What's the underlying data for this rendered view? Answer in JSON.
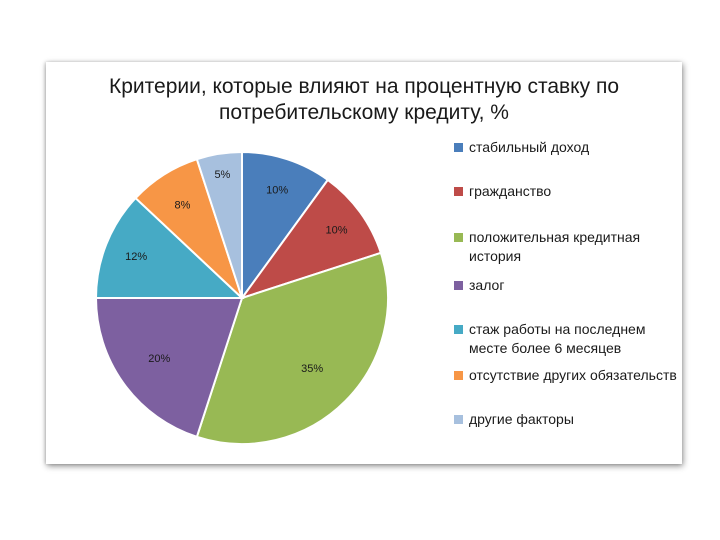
{
  "chart_data": {
    "type": "pie",
    "title_line1": "Критерии, которые влияют на процентную ставку по",
    "title_line2": "потребительскому кредиту, %",
    "slices": [
      {
        "label": "стабильный доход",
        "value": 10,
        "value_label": "10%",
        "color": "#4A7EBB"
      },
      {
        "label": "гражданство",
        "value": 10,
        "value_label": "10%",
        "color": "#BE4B48"
      },
      {
        "label": "положительная кредитная история",
        "value": 35,
        "value_label": "35%",
        "color": "#98B954"
      },
      {
        "label": "залог",
        "value": 20,
        "value_label": "20%",
        "color": "#7D60A0"
      },
      {
        "label": "стаж работы на последнем месте более 6 месяцев",
        "value": 12,
        "value_label": "12%",
        "color": "#46AAC5"
      },
      {
        "label": "отсутствие других обязательств",
        "value": 8,
        "value_label": "8%",
        "color": "#F79646"
      },
      {
        "label": "другие факторы",
        "value": 5,
        "value_label": "5%",
        "color": "#A7C0DE"
      }
    ],
    "legend_position": "right",
    "start_angle_deg": 0,
    "direction": "clockwise"
  }
}
